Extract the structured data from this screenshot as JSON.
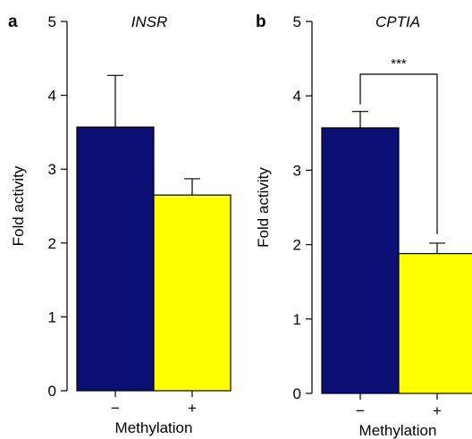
{
  "chart_data": [
    {
      "type": "bar",
      "panel_label": "a",
      "title": "INSR",
      "ylabel": "Fold activity",
      "xlabel": "Methylation",
      "categories": [
        "−",
        "+"
      ],
      "values": [
        3.57,
        2.65
      ],
      "errors": [
        0.7,
        0.22
      ],
      "colors": [
        "#0a0f73",
        "#ffff00"
      ],
      "ylim": [
        0,
        5
      ],
      "yticks": [
        0,
        1,
        2,
        3,
        4,
        5
      ],
      "significance": null
    },
    {
      "type": "bar",
      "panel_label": "b",
      "title": "CPTIA",
      "ylabel": "Fold activity",
      "xlabel": "Methylation",
      "categories": [
        "−",
        "+"
      ],
      "values": [
        3.57,
        1.88
      ],
      "errors": [
        0.22,
        0.14
      ],
      "colors": [
        "#0a0f73",
        "#ffff00"
      ],
      "ylim": [
        0,
        5
      ],
      "yticks": [
        0,
        1,
        2,
        3,
        4,
        5
      ],
      "significance": "***"
    }
  ]
}
